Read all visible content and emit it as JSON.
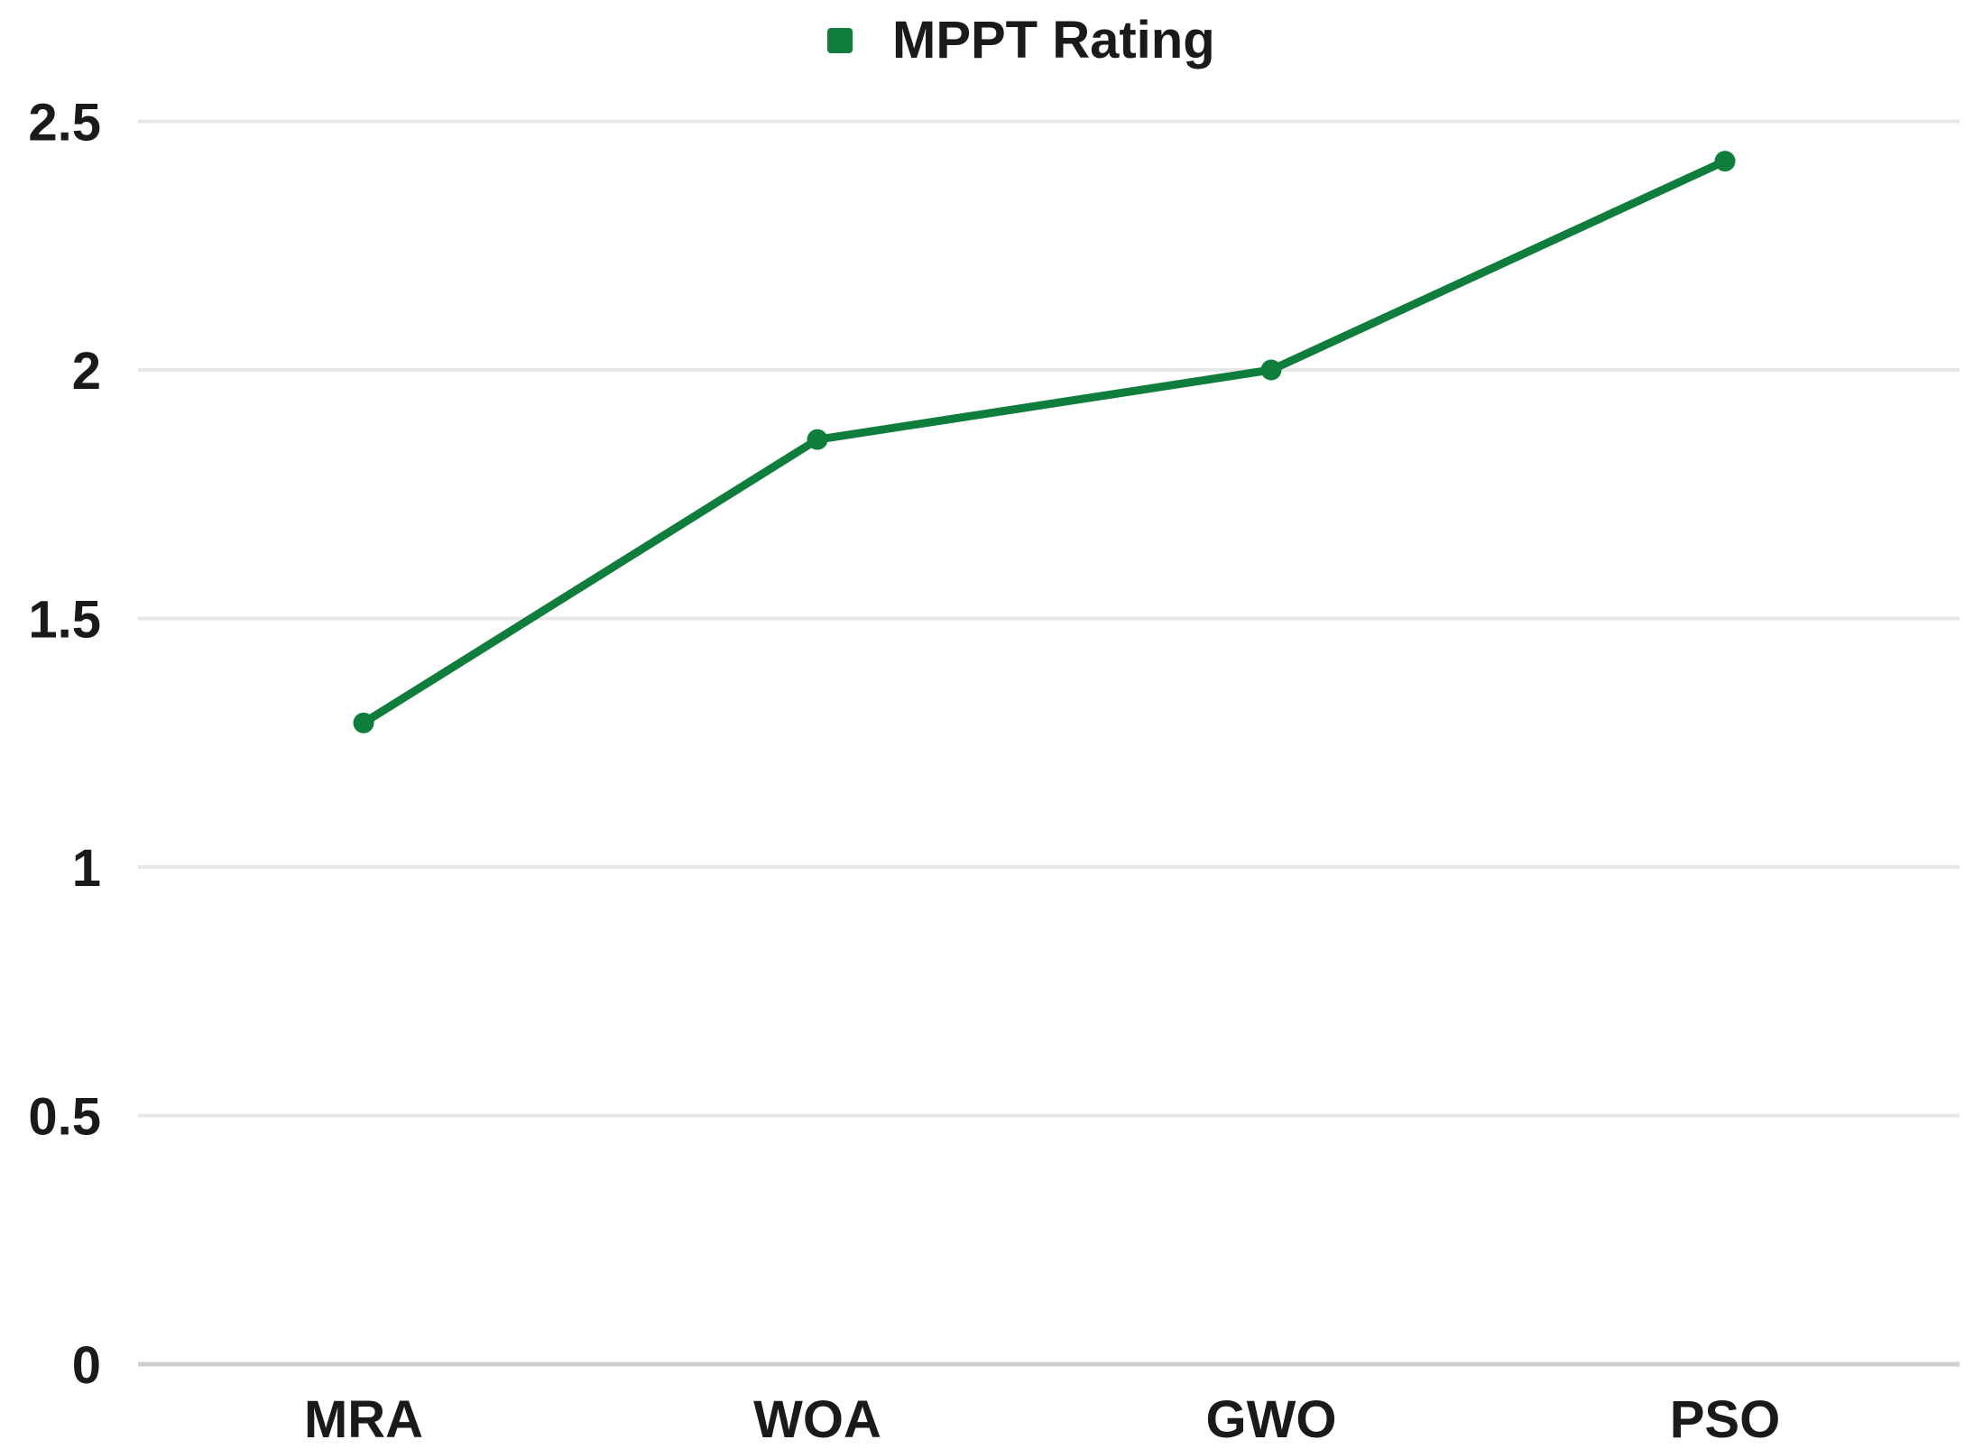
{
  "chart": {
    "legend": {
      "label": "MPPT Rating"
    },
    "colors": {
      "series": "#0f7d3c",
      "grid": "#e7e7e7",
      "zero_line": "#cfcfcf",
      "text": "#1a1a1a",
      "background": "#ffffff"
    }
  },
  "chart_data": {
    "type": "line",
    "title": "",
    "categories": [
      "MRA",
      "WOA",
      "GWO",
      "PSO"
    ],
    "series": [
      {
        "name": "MPPT Rating",
        "color": "#0f7d3c",
        "marker": "circle",
        "values": [
          1.29,
          1.86,
          2.0,
          2.42
        ]
      }
    ],
    "xlabel": "",
    "ylabel": "",
    "ylim": [
      0,
      2.5
    ],
    "yticks": [
      0,
      0.5,
      1,
      1.5,
      2,
      2.5
    ],
    "ytick_labels": [
      "0",
      "0.5",
      "1",
      "1.5",
      "2",
      "2.5"
    ],
    "grid": "horizontal",
    "legend_position": "top-center"
  }
}
